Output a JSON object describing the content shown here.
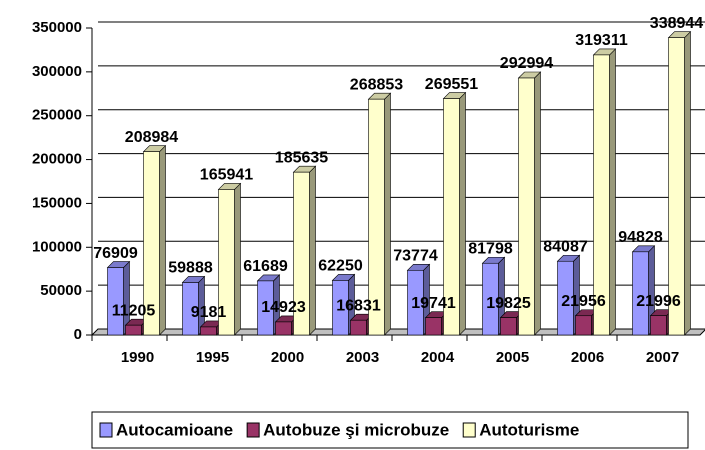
{
  "chart_data": {
    "type": "bar3d",
    "categories": [
      "1990",
      "1995",
      "2000",
      "2003",
      "2004",
      "2005",
      "2006",
      "2007"
    ],
    "series": [
      {
        "name": "Autocamioane",
        "color": "#9999ff",
        "values": [
          76909,
          59888,
          61689,
          62250,
          73774,
          81798,
          84087,
          94828
        ]
      },
      {
        "name": "Autobuze şi microbuze",
        "color": "#993366",
        "values": [
          11205,
          9181,
          14923,
          16831,
          19741,
          19825,
          21956,
          21996
        ]
      },
      {
        "name": "Autoturisme",
        "color": "#ffffcc",
        "values": [
          208984,
          165941,
          185635,
          268853,
          269551,
          292994,
          319311,
          338944
        ]
      }
    ],
    "ylim": [
      0,
      350000
    ],
    "yticks": [
      0,
      50000,
      100000,
      150000,
      200000,
      250000,
      300000,
      350000
    ],
    "grid": true,
    "legend": "bottom"
  }
}
